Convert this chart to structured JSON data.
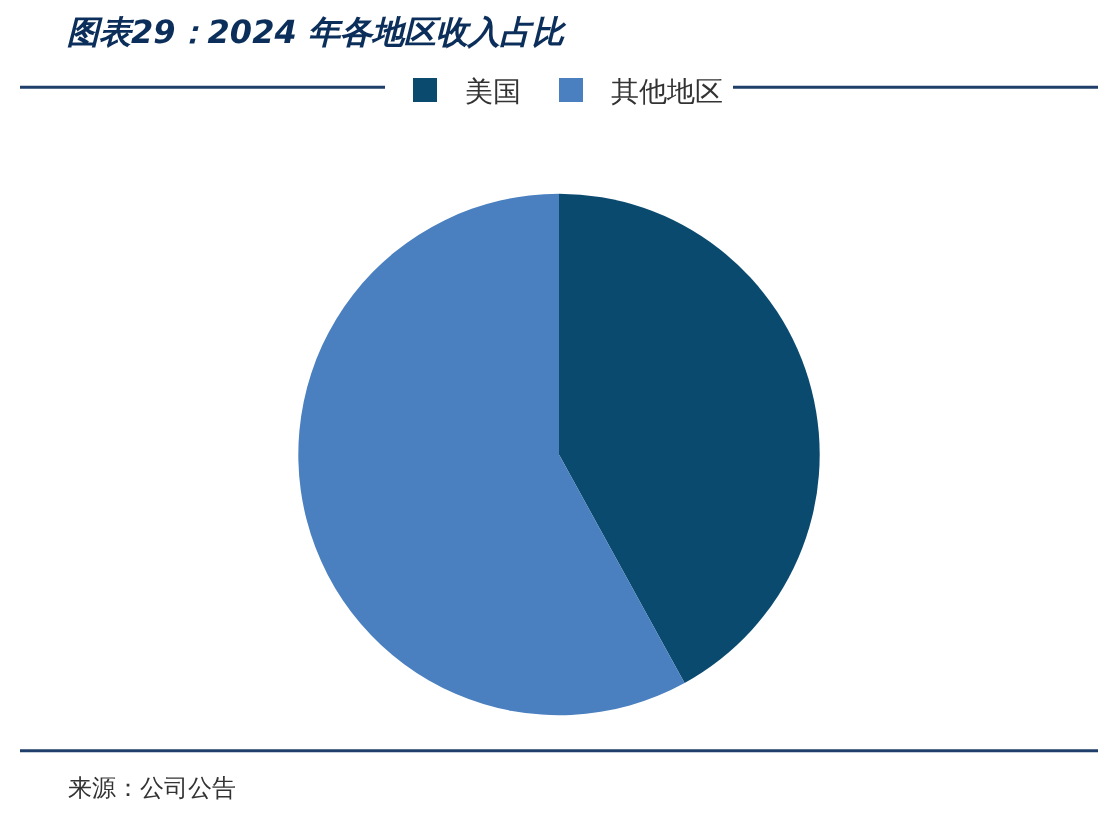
{
  "chart_data": {
    "type": "pie",
    "title": "图表29：2024 年各地区收入占比",
    "categories": [
      "美国",
      "其他地区"
    ],
    "values": [
      42,
      58
    ],
    "colors": [
      "#0b4a6f",
      "#4a80c0"
    ],
    "legend": "top",
    "annotations": [
      "来源：公司公告"
    ]
  }
}
